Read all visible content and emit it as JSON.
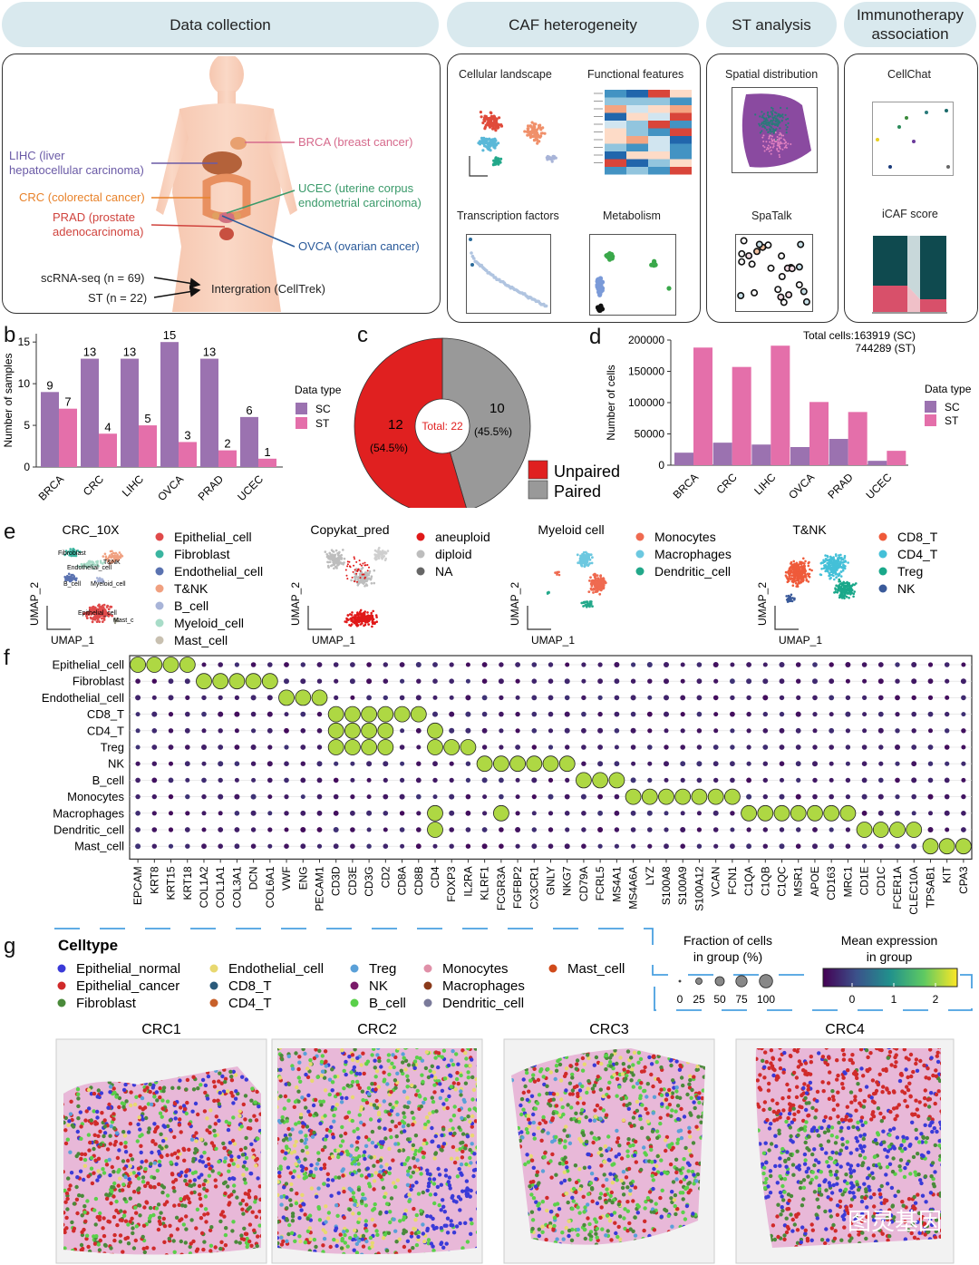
{
  "panel_letters": {
    "a": "a",
    "b": "b",
    "c": "c",
    "d": "d",
    "e": "e",
    "f": "f",
    "g": "g"
  },
  "headers": {
    "data_collection": "Data collection",
    "caf_heterogeneity": "CAF heterogeneity",
    "st_analysis": "ST analysis",
    "immunotherapy_line1": "Immunotherapy",
    "immunotherapy_line2": "association"
  },
  "panel_a": {
    "cancers": {
      "lihc_line1": "LIHC (liver",
      "lihc_line2": "hepatocellular carcinoma)",
      "crc": "CRC (colorectal cancer)",
      "prad_line1": "PRAD (prostate",
      "prad_line2": "adenocarcinoma)",
      "brca": "BRCA (breast cancer)",
      "ucec_line1": "UCEC (uterine corpus",
      "ucec_line2": "endometrial carcinoma)",
      "ovca": "OVCA (ovarian cancer)"
    },
    "cancer_colors": {
      "lihc": "#6a5aa6",
      "crc": "#e8822a",
      "prad": "#d0443e",
      "brca": "#d66a8c",
      "ucec": "#3a9a6a",
      "ovca": "#2a5a9a"
    },
    "scrna": "scRNA-seq (n = 69)",
    "st": "ST (n = 22)",
    "integration": "Intergration (CellTrek)",
    "caf_tiles": [
      "Cellular landscape",
      "Functional features",
      "Transcription factors",
      "Metabolism"
    ],
    "st_tiles": [
      "Spatial distribution",
      "SpaTalk"
    ],
    "immuno_tiles": [
      "CellChat",
      "iCAF score"
    ]
  },
  "panel_b": {
    "chart_data": {
      "type": "bar",
      "categories": [
        "BRCA",
        "CRC",
        "LIHC",
        "OVCA",
        "PRAD",
        "UCEC"
      ],
      "series": [
        {
          "name": "SC",
          "values": [
            9,
            13,
            13,
            15,
            13,
            6
          ],
          "color": "#9b72b0"
        },
        {
          "name": "ST",
          "values": [
            7,
            4,
            5,
            3,
            2,
            1
          ],
          "color": "#e46faa"
        }
      ],
      "ylabel": "Number of samples",
      "yticks": [
        0,
        5,
        10,
        15
      ],
      "ylim": [
        0,
        16
      ],
      "legend_title": "Data type",
      "legend_position": "right"
    }
  },
  "panel_c": {
    "chart_data": {
      "type": "pie",
      "slices": [
        {
          "name": "Unpaired",
          "value": 12,
          "pct": "(54.5%)",
          "color": "#e02020"
        },
        {
          "name": "Paired",
          "value": 10,
          "pct": "(45.5%)",
          "color": "#999999"
        }
      ],
      "center_label": "Total: 22",
      "legend_position": "bottom-right"
    }
  },
  "panel_d": {
    "chart_data": {
      "type": "bar",
      "categories": [
        "BRCA",
        "CRC",
        "LIHC",
        "OVCA",
        "PRAD",
        "UCEC"
      ],
      "series": [
        {
          "name": "SC",
          "values": [
            20000,
            36000,
            33000,
            29000,
            42000,
            7000
          ],
          "color": "#9b72b0"
        },
        {
          "name": "ST",
          "values": [
            188000,
            157000,
            191000,
            101000,
            85000,
            23000
          ],
          "color": "#e46faa"
        }
      ],
      "ylabel": "Number of cells",
      "yticks": [
        "0",
        "50000",
        "100000",
        "150000",
        "200000"
      ],
      "ylim": [
        0,
        200000
      ],
      "annotation_line1": "Total cells:163919 (SC)",
      "annotation_line2": "744289 (ST)",
      "legend_title": "Data type",
      "legend_position": "right"
    }
  },
  "panel_e": {
    "umap_x": "UMAP_1",
    "umap_y": "UMAP_2",
    "plots": [
      {
        "title": "CRC_10X",
        "legend": [
          {
            "label": "Epithelial_cell",
            "color": "#e04a4a"
          },
          {
            "label": "Fibroblast",
            "color": "#3ab5a0"
          },
          {
            "label": "Endothelial_cell",
            "color": "#5a72b0"
          },
          {
            "label": "T&NK",
            "color": "#f0a080"
          },
          {
            "label": "B_cell",
            "color": "#a8b4d8"
          },
          {
            "label": "Myeloid_cell",
            "color": "#a8dcc8"
          },
          {
            "label": "Mast_cell",
            "color": "#c8c0b0"
          }
        ],
        "overlay_labels": [
          "Fibroblast",
          "T&NK",
          "Endothelial_cell",
          "B_cell",
          "Myeloid_cell",
          "Epithelial_cell",
          "Mast_c"
        ]
      },
      {
        "title": "Copykat_pred",
        "legend": [
          {
            "label": "aneuploid",
            "color": "#e01818"
          },
          {
            "label": "diploid",
            "color": "#bdbdbd"
          },
          {
            "label": "NA",
            "color": "#666666"
          }
        ]
      },
      {
        "title": "Myeloid cell",
        "legend": [
          {
            "label": "Monocytes",
            "color": "#ef6a50"
          },
          {
            "label": "Macrophages",
            "color": "#6cc8e0"
          },
          {
            "label": "Dendritic_cell",
            "color": "#22a88a"
          }
        ]
      },
      {
        "title": "T&NK",
        "legend": [
          {
            "label": "CD8_T",
            "color": "#ef5a3a"
          },
          {
            "label": "CD4_T",
            "color": "#44c0d8"
          },
          {
            "label": "Treg",
            "color": "#1aa88a"
          },
          {
            "label": "NK",
            "color": "#3a5a9a"
          }
        ]
      }
    ]
  },
  "panel_f": {
    "chart_data": {
      "type": "heatmap",
      "rows": [
        "Epithelial_cell",
        "Fibroblast",
        "Endothelial_cell",
        "CD8_T",
        "CD4_T",
        "Treg",
        "NK",
        "B_cell",
        "Monocytes",
        "Macrophages",
        "Dendritic_cell",
        "Mast_cell"
      ],
      "columns": [
        "EPCAM",
        "KRT8",
        "KRT15",
        "KRT18",
        "COL1A2",
        "COL1A1",
        "COL3A1",
        "DCN",
        "COL6A1",
        "VWF",
        "ENG",
        "PECAM1",
        "CD3D",
        "CD3E",
        "CD3G",
        "CD2",
        "CD8A",
        "CD8B",
        "CD4",
        "FOXP3",
        "IL2RA",
        "KLRF1",
        "FCGR3A",
        "FGFBP2",
        "CX3CR1",
        "GNLY",
        "NKG7",
        "CD79A",
        "FCRL5",
        "MS4A1",
        "MS4A6A",
        "LYZ",
        "S100A8",
        "S100A9",
        "S100A12",
        "VCAN",
        "FCN1",
        "C1QA",
        "C1QB",
        "C1QC",
        "MSR1",
        "APOE",
        "CD163",
        "MRC1",
        "CD1E",
        "CD1C",
        "FCER1A",
        "CLEC10A",
        "TPSAB1",
        "KIT",
        "CPA3"
      ],
      "size_legend_title_line1": "Fraction of cells",
      "size_legend_title_line2": "in group (%)",
      "size_ticks": [
        "0",
        "25",
        "50",
        "75",
        "100"
      ],
      "color_legend_title_line1": "Mean expression",
      "color_legend_title_line2": "in group",
      "color_ticks": [
        "0",
        "1",
        "2"
      ],
      "color_range": [
        0,
        2.5
      ]
    }
  },
  "panel_g": {
    "legend_title": "Celltype",
    "celltypes": [
      {
        "label": "Epithelial_normal",
        "color": "#3a3ad8"
      },
      {
        "label": "Epithelial_cancer",
        "color": "#d02a2a"
      },
      {
        "label": "Fibroblast",
        "color": "#4a8a3a"
      },
      {
        "label": "Endothelial_cell",
        "color": "#e8d870"
      },
      {
        "label": "CD8_T",
        "color": "#2a5a7a"
      },
      {
        "label": "CD4_T",
        "color": "#c8602a"
      },
      {
        "label": "Treg",
        "color": "#5aa0d8"
      },
      {
        "label": "NK",
        "color": "#7a1a6a"
      },
      {
        "label": "B_cell",
        "color": "#5ad04a"
      },
      {
        "label": "Monocytes",
        "color": "#e090a8"
      },
      {
        "label": "Macrophages",
        "color": "#8a3a1a"
      },
      {
        "label": "Dendritic_cell",
        "color": "#7a7a9a"
      },
      {
        "label": "Mast_cell",
        "color": "#d04a1a"
      }
    ],
    "samples": [
      "CRC1",
      "CRC2",
      "CRC3",
      "CRC4"
    ],
    "watermark": "图灵基因"
  }
}
